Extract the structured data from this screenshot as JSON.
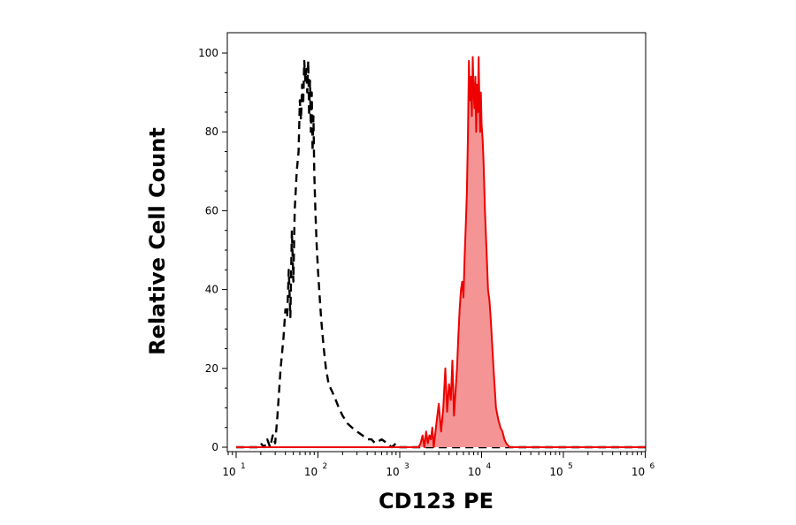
{
  "chart_data": {
    "type": "area",
    "xlabel": "CD123 PE",
    "ylabel": "Relative Cell Count",
    "x_scale": "log",
    "xlim": [
      6,
      1000000
    ],
    "ylim": [
      0,
      105
    ],
    "grid": false,
    "x_ticks": [
      {
        "base": "10",
        "exp": "1",
        "value": 10
      },
      {
        "base": "10",
        "exp": "2",
        "value": 100
      },
      {
        "base": "10",
        "exp": "3",
        "value": 1000
      },
      {
        "base": "10",
        "exp": "4",
        "value": 10000
      },
      {
        "base": "10",
        "exp": "5",
        "value": 100000
      },
      {
        "base": "10",
        "exp": "6",
        "value": 1000000
      }
    ],
    "y_ticks": [
      {
        "label": "0",
        "value": 0
      },
      {
        "label": "20",
        "value": 20
      },
      {
        "label": "40",
        "value": 40
      },
      {
        "label": "60",
        "value": 60
      },
      {
        "label": "80",
        "value": 80
      },
      {
        "label": "100",
        "value": 100
      }
    ],
    "series": [
      {
        "style": "dashed",
        "color": "#000000",
        "fill": "none",
        "x": [
          10,
          18,
          20,
          22,
          24,
          26,
          28,
          30,
          32,
          35,
          38,
          40,
          42,
          44,
          46,
          48,
          50,
          52,
          55,
          58,
          60,
          62,
          64,
          66,
          68,
          70,
          72,
          74,
          76,
          78,
          80,
          82,
          84,
          86,
          88,
          90,
          93,
          96,
          100,
          105,
          110,
          118,
          125,
          135,
          150,
          165,
          180,
          200,
          230,
          260,
          300,
          350,
          400,
          450,
          500,
          600,
          700,
          800,
          900,
          1000,
          1000000
        ],
        "y": [
          0,
          0,
          1,
          0,
          2,
          0,
          3,
          1,
          8,
          20,
          28,
          35,
          33,
          45,
          33,
          55,
          42,
          60,
          70,
          75,
          88,
          83,
          92,
          87,
          98,
          93,
          96,
          90,
          98,
          84,
          93,
          80,
          90,
          75,
          84,
          70,
          60,
          52,
          45,
          38,
          32,
          25,
          20,
          16,
          14,
          12,
          10,
          8,
          6,
          5,
          4,
          3,
          2,
          2,
          1,
          2,
          1,
          0,
          1,
          0,
          0
        ]
      },
      {
        "style": "solid",
        "color": "#ee0000",
        "fill": "#f49494",
        "x": [
          10,
          1700,
          1800,
          1900,
          2000,
          2100,
          2200,
          2300,
          2400,
          2500,
          2600,
          2800,
          3000,
          3200,
          3400,
          3600,
          3800,
          4000,
          4200,
          4400,
          4600,
          4800,
          5000,
          5200,
          5400,
          5600,
          5800,
          6000,
          6200,
          6400,
          6600,
          6800,
          7000,
          7200,
          7400,
          7600,
          7800,
          8000,
          8200,
          8400,
          8600,
          8800,
          9000,
          9200,
          9400,
          9600,
          9800,
          10000,
          10300,
          10600,
          11000,
          11500,
          12000,
          12500,
          13000,
          14000,
          15000,
          16000,
          17000,
          18000,
          19000,
          20000,
          22000,
          25000,
          30000,
          1000000
        ],
        "y": [
          0,
          0,
          1,
          3,
          0,
          4,
          1,
          3,
          2,
          5,
          0,
          6,
          11,
          4,
          10,
          20,
          9,
          16,
          12,
          22,
          8,
          14,
          20,
          28,
          35,
          40,
          42,
          38,
          48,
          56,
          64,
          78,
          98,
          88,
          94,
          84,
          99,
          90,
          86,
          94,
          80,
          92,
          85,
          99,
          88,
          80,
          90,
          82,
          78,
          72,
          60,
          50,
          40,
          37,
          32,
          20,
          10,
          7,
          5,
          4,
          2,
          1,
          0,
          0,
          0,
          0
        ]
      }
    ]
  }
}
